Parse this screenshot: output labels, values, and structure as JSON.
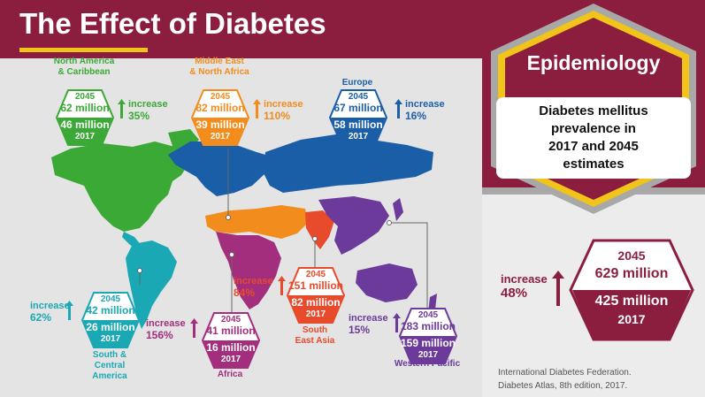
{
  "header": {
    "title": "The Effect of Diabetes"
  },
  "sidebar": {
    "heading": "Epidemiology",
    "subtitle": [
      "Diabetes mellitus",
      "prevalence in",
      "2017 and 2045",
      "estimates"
    ],
    "global": {
      "year_2045": "2045",
      "value_2045": "629 million",
      "value_2017": "425 million",
      "year_2017": "2017",
      "increase_label": "increase",
      "increase_pct": "48%"
    },
    "source": [
      "International Diabetes Federation.",
      "Diabetes Atlas, 8th edition, 2017."
    ]
  },
  "regions": [
    {
      "key": "north_america",
      "name": [
        "North America",
        "& Caribbean"
      ],
      "year_2045": "2045",
      "value_2045": "62 million",
      "value_2017": "46 million",
      "year_2017": "2017",
      "increase_label": "increase",
      "increase_pct": "35%",
      "color": "#3aa935"
    },
    {
      "key": "mena",
      "name": [
        "Middle East",
        "& North Africa"
      ],
      "year_2045": "2045",
      "value_2045": "82 million",
      "value_2017": "39 million",
      "year_2017": "2017",
      "increase_label": "increase",
      "increase_pct": "110%",
      "color": "#f28c1c"
    },
    {
      "key": "europe",
      "name": [
        "Europe"
      ],
      "year_2045": "2045",
      "value_2045": "67 million",
      "value_2017": "58 million",
      "year_2017": "2017",
      "increase_label": "increase",
      "increase_pct": "16%",
      "color": "#1b5ea8"
    },
    {
      "key": "south_america",
      "name": [
        "South &",
        "Central",
        "America"
      ],
      "year_2045": "2045",
      "value_2045": "42 million",
      "value_2017": "26 million",
      "year_2017": "2017",
      "increase_label": "increase",
      "increase_pct": "62%",
      "color": "#1aa8b4"
    },
    {
      "key": "africa",
      "name": [
        "Africa"
      ],
      "year_2045": "2045",
      "value_2045": "41 million",
      "value_2017": "16 million",
      "year_2017": "2017",
      "increase_label": "increase",
      "increase_pct": "156%",
      "color": "#a32e7e"
    },
    {
      "key": "sea",
      "name": [
        "South",
        "East Asia"
      ],
      "year_2045": "2045",
      "value_2045": "151 million",
      "value_2017": "82 million",
      "year_2017": "2017",
      "increase_label": "increase",
      "increase_pct": "84%",
      "color": "#e84a2c"
    },
    {
      "key": "western_pacific",
      "name": [
        "Western Pacific"
      ],
      "year_2045": "2045",
      "value_2045": "183 million",
      "value_2017": "159 million",
      "year_2017": "2017",
      "increase_label": "increase",
      "increase_pct": "15%",
      "color": "#6c3a9a"
    }
  ],
  "colors": {
    "title_bar": "#8b1e3f",
    "accent": "#f0c419",
    "panel": "#ececec"
  }
}
